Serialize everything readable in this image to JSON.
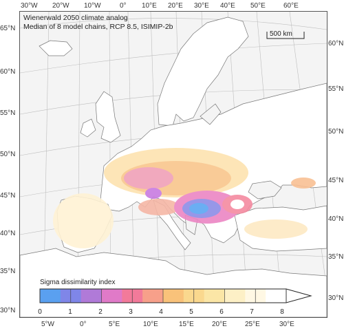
{
  "title_lines": [
    "Wienerwald 2050 climate analog",
    "Median of 8 model chains, RCP 8.5, ISIMIP-2b"
  ],
  "scale_bar": "500 km",
  "top_axis": [
    "30°W",
    "20°W",
    "10°W",
    "0°",
    "10°E",
    "20°E",
    "30°E",
    "40°E",
    "50°E",
    "60°E"
  ],
  "bottom_axis": [
    "5°W",
    "0°",
    "5°E",
    "10°E",
    "15°E",
    "20°E",
    "25°E",
    "30°E"
  ],
  "left_axis": [
    "65°N",
    "60°N",
    "55°N",
    "50°N",
    "45°N",
    "40°N",
    "35°N",
    "30°N"
  ],
  "right_axis": [
    "60°N",
    "55°N",
    "50°N",
    "45°N",
    "40°N",
    "35°N",
    "30°N"
  ],
  "legend": {
    "title": "Sigma dissimilarity index",
    "ticks": [
      "0",
      "1",
      "2",
      "3",
      "4",
      "5",
      "6",
      "7",
      "8"
    ],
    "colors": [
      "#5aa0f0",
      "#7f86e8",
      "#b07ad8",
      "#e07ac8",
      "#f27a9a",
      "#f7a08a",
      "#f9c27a",
      "#fad88e",
      "#fbe6a6",
      "#fdf0c6",
      "#fff8e4",
      "#ffffff"
    ]
  }
}
